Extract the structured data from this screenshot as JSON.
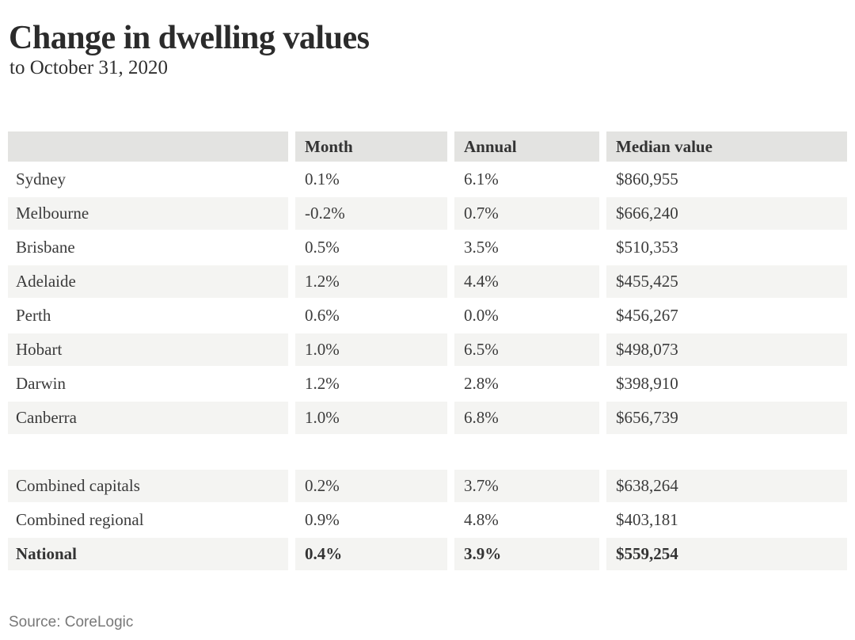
{
  "header": {
    "title": "Change in dwelling values",
    "subtitle": "to October 31, 2020"
  },
  "footer": {
    "source": "Source: CoreLogic"
  },
  "colors": {
    "header_row_bg": "#e3e3e1",
    "stripe_row_bg": "#f4f4f2",
    "body_text": "#3b3b3b",
    "title_text": "#2b2b2b",
    "source_text": "#787878",
    "page_bg": "#ffffff"
  },
  "chart_data": {
    "type": "table",
    "title": "Change in dwelling values",
    "subtitle": "to October 31, 2020",
    "source": "Source: CoreLogic",
    "columns": [
      "",
      "Month",
      "Annual",
      "Median value"
    ],
    "rows": [
      {
        "name": "Sydney",
        "month": "0.1%",
        "annual": "6.1%",
        "median": "$860,955"
      },
      {
        "name": "Melbourne",
        "month": "-0.2%",
        "annual": "0.7%",
        "median": "$666,240"
      },
      {
        "name": "Brisbane",
        "month": "0.5%",
        "annual": "3.5%",
        "median": "$510,353"
      },
      {
        "name": "Adelaide",
        "month": "1.2%",
        "annual": "4.4%",
        "median": "$455,425"
      },
      {
        "name": "Perth",
        "month": "0.6%",
        "annual": "0.0%",
        "median": "$456,267"
      },
      {
        "name": "Hobart",
        "month": "1.0%",
        "annual": "6.5%",
        "median": "$498,073"
      },
      {
        "name": "Darwin",
        "month": "1.2%",
        "annual": "2.8%",
        "median": "$398,910"
      },
      {
        "name": "Canberra",
        "month": "1.0%",
        "annual": "6.8%",
        "median": "$656,739"
      }
    ],
    "summary_rows": [
      {
        "name": "Combined capitals",
        "month": "0.2%",
        "annual": "3.7%",
        "median": "$638,264",
        "bold": false
      },
      {
        "name": "Combined regional",
        "month": "0.9%",
        "annual": "4.8%",
        "median": "$403,181",
        "bold": false
      },
      {
        "name": "National",
        "month": "0.4%",
        "annual": "3.9%",
        "median": "$559,254",
        "bold": true
      }
    ]
  }
}
